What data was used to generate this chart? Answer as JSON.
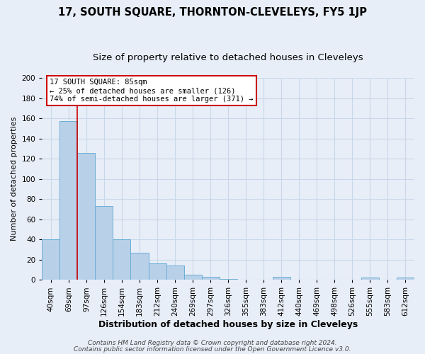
{
  "title": "17, SOUTH SQUARE, THORNTON-CLEVELEYS, FY5 1JP",
  "subtitle": "Size of property relative to detached houses in Cleveleys",
  "xlabel": "Distribution of detached houses by size in Cleveleys",
  "ylabel": "Number of detached properties",
  "bar_labels": [
    "40sqm",
    "69sqm",
    "97sqm",
    "126sqm",
    "154sqm",
    "183sqm",
    "212sqm",
    "240sqm",
    "269sqm",
    "297sqm",
    "326sqm",
    "355sqm",
    "383sqm",
    "412sqm",
    "440sqm",
    "469sqm",
    "498sqm",
    "526sqm",
    "555sqm",
    "583sqm",
    "612sqm"
  ],
  "bar_values": [
    40,
    157,
    126,
    73,
    40,
    27,
    16,
    14,
    5,
    3,
    1,
    0,
    0,
    3,
    0,
    0,
    0,
    0,
    2,
    0,
    2
  ],
  "bar_color": "#b8d0e8",
  "bar_edge_color": "#6baed6",
  "bar_width": 1.0,
  "vline_color": "#cc0000",
  "vline_x": 1.5,
  "ylim": [
    0,
    200
  ],
  "yticks": [
    0,
    20,
    40,
    60,
    80,
    100,
    120,
    140,
    160,
    180,
    200
  ],
  "annotation_text": "17 SOUTH SQUARE: 85sqm\n← 25% of detached houses are smaller (126)\n74% of semi-detached houses are larger (371) →",
  "annotation_box_facecolor": "#ffffff",
  "annotation_box_edgecolor": "#cc0000",
  "footer_line1": "Contains HM Land Registry data © Crown copyright and database right 2024.",
  "footer_line2": "Contains public sector information licensed under the Open Government Licence v3.0.",
  "grid_color": "#c8d8e8",
  "background_color": "#e8eef8",
  "plot_bg_color": "#e8eef8",
  "title_fontsize": 10.5,
  "subtitle_fontsize": 9.5,
  "ylabel_fontsize": 8,
  "xlabel_fontsize": 9,
  "tick_fontsize": 7.5,
  "annot_fontsize": 7.5,
  "footer_fontsize": 6.5
}
